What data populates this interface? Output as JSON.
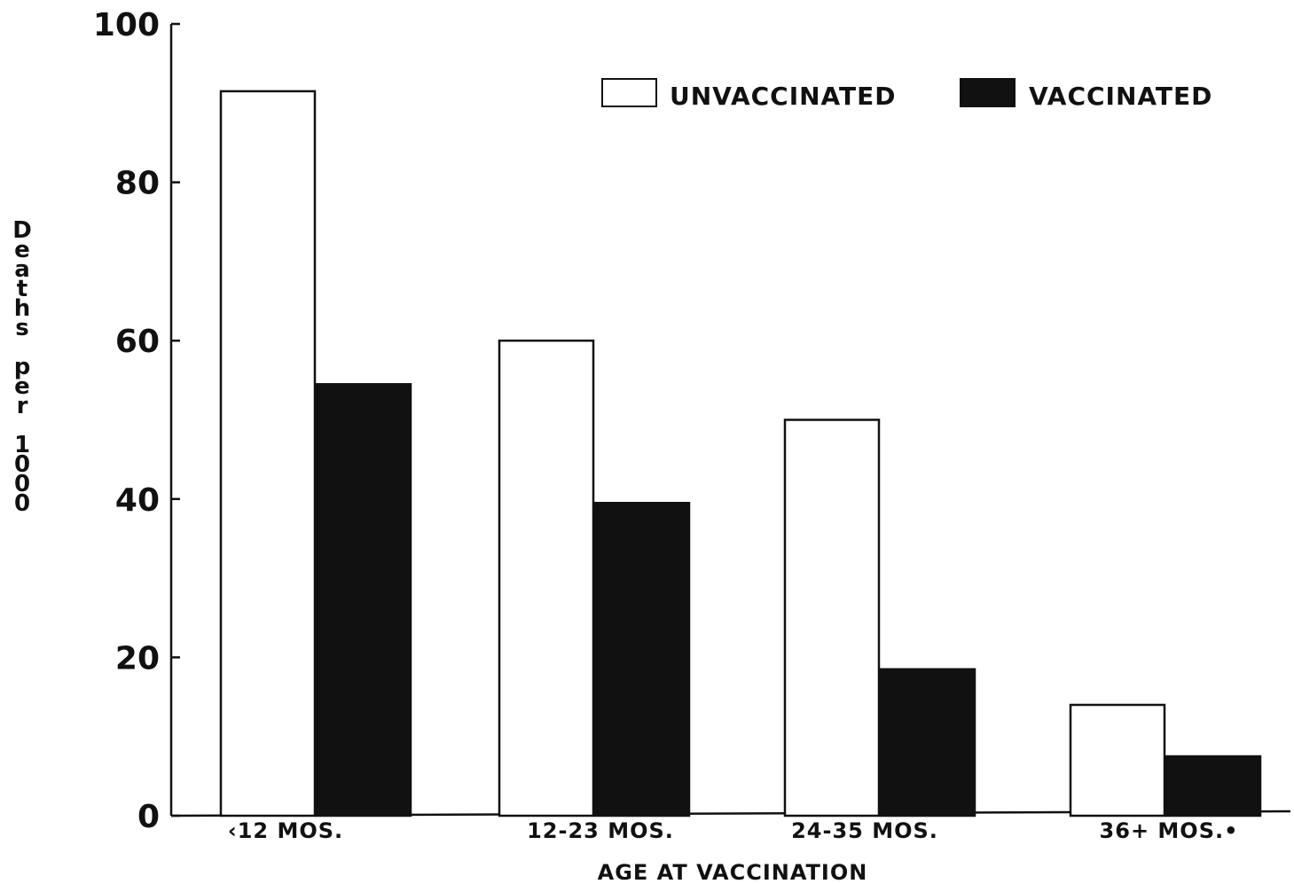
{
  "chart_data": {
    "type": "bar",
    "title": "",
    "xlabel": "AGE AT VACCINATION",
    "ylabel": "Deaths per 1000",
    "categories": [
      "‹12 MOS.",
      "12-23 MOS.",
      "24-35 MOS.",
      "36+ MOS.•"
    ],
    "series": [
      {
        "name": "UNVACCINATED",
        "values": [
          91.5,
          60,
          50,
          14
        ],
        "color": "#ffffff"
      },
      {
        "name": "VACCINATED",
        "values": [
          54.5,
          39.5,
          18.5,
          7.5
        ],
        "color": "#111111"
      }
    ],
    "ylim": [
      0,
      100
    ],
    "yticks": [
      0,
      20,
      40,
      60,
      80,
      100
    ],
    "grid": false,
    "legend_position": "top-right"
  }
}
